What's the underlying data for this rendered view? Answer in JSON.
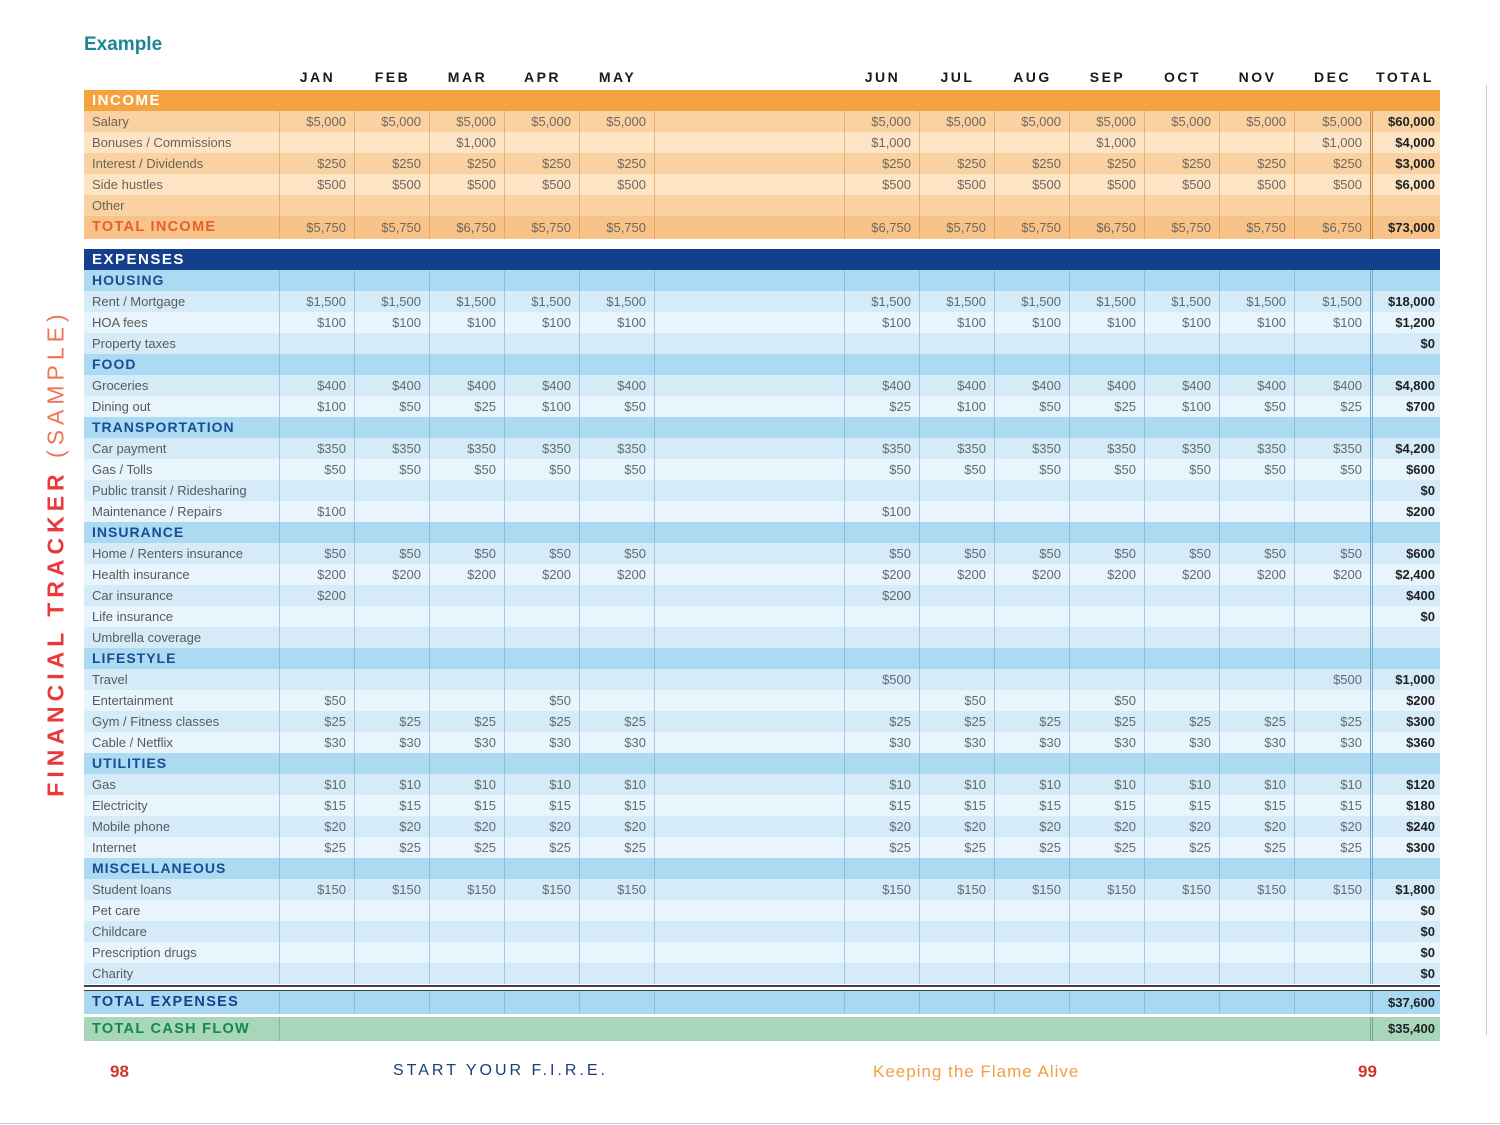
{
  "page": {
    "example_label": "Example",
    "vertical_title": {
      "main": "FINANCIAL TRACKER",
      "sample": " (SAMPLE)"
    },
    "footer": {
      "page_left": "98",
      "book_title": "START YOUR F.I.R.E.",
      "chapter_title": "Keeping the Flame Alive",
      "page_right": "99"
    }
  },
  "months": [
    "JAN",
    "FEB",
    "MAR",
    "APR",
    "MAY",
    "JUN",
    "JUL",
    "AUG",
    "SEP",
    "OCT",
    "NOV",
    "DEC"
  ],
  "total_header": "TOTAL",
  "income": {
    "header": "INCOME",
    "rows": [
      {
        "label": "Salary",
        "values": [
          "$5,000",
          "$5,000",
          "$5,000",
          "$5,000",
          "$5,000",
          "$5,000",
          "$5,000",
          "$5,000",
          "$5,000",
          "$5,000",
          "$5,000",
          "$5,000"
        ],
        "total": "$60,000"
      },
      {
        "label": "Bonuses / Commissions",
        "values": [
          "",
          "",
          "$1,000",
          "",
          "",
          "$1,000",
          "",
          "",
          "$1,000",
          "",
          "",
          "$1,000"
        ],
        "total": "$4,000"
      },
      {
        "label": "Interest / Dividends",
        "values": [
          "$250",
          "$250",
          "$250",
          "$250",
          "$250",
          "$250",
          "$250",
          "$250",
          "$250",
          "$250",
          "$250",
          "$250"
        ],
        "total": "$3,000"
      },
      {
        "label": "Side hustles",
        "values": [
          "$500",
          "$500",
          "$500",
          "$500",
          "$500",
          "$500",
          "$500",
          "$500",
          "$500",
          "$500",
          "$500",
          "$500"
        ],
        "total": "$6,000"
      },
      {
        "label": "Other",
        "values": [
          "",
          "",
          "",
          "",
          "",
          "",
          "",
          "",
          "",
          "",
          "",
          ""
        ],
        "total": ""
      }
    ],
    "total_row": {
      "label": "TOTAL INCOME",
      "values": [
        "$5,750",
        "$5,750",
        "$6,750",
        "$5,750",
        "$5,750",
        "$6,750",
        "$5,750",
        "$5,750",
        "$6,750",
        "$5,750",
        "$5,750",
        "$6,750"
      ],
      "total": "$73,000"
    }
  },
  "expenses": {
    "header": "EXPENSES",
    "sections": [
      {
        "title": "HOUSING",
        "rows": [
          {
            "label": "Rent / Mortgage",
            "values": [
              "$1,500",
              "$1,500",
              "$1,500",
              "$1,500",
              "$1,500",
              "$1,500",
              "$1,500",
              "$1,500",
              "$1,500",
              "$1,500",
              "$1,500",
              "$1,500"
            ],
            "total": "$18,000"
          },
          {
            "label": "HOA fees",
            "values": [
              "$100",
              "$100",
              "$100",
              "$100",
              "$100",
              "$100",
              "$100",
              "$100",
              "$100",
              "$100",
              "$100",
              "$100"
            ],
            "total": "$1,200"
          },
          {
            "label": "Property taxes",
            "values": [
              "",
              "",
              "",
              "",
              "",
              "",
              "",
              "",
              "",
              "",
              "",
              ""
            ],
            "total": "$0"
          }
        ]
      },
      {
        "title": "FOOD",
        "rows": [
          {
            "label": "Groceries",
            "values": [
              "$400",
              "$400",
              "$400",
              "$400",
              "$400",
              "$400",
              "$400",
              "$400",
              "$400",
              "$400",
              "$400",
              "$400"
            ],
            "total": "$4,800"
          },
          {
            "label": "Dining out",
            "values": [
              "$100",
              "$50",
              "$25",
              "$100",
              "$50",
              "$25",
              "$100",
              "$50",
              "$25",
              "$100",
              "$50",
              "$25"
            ],
            "total": "$700"
          }
        ]
      },
      {
        "title": "TRANSPORTATION",
        "rows": [
          {
            "label": "Car payment",
            "values": [
              "$350",
              "$350",
              "$350",
              "$350",
              "$350",
              "$350",
              "$350",
              "$350",
              "$350",
              "$350",
              "$350",
              "$350"
            ],
            "total": "$4,200"
          },
          {
            "label": "Gas / Tolls",
            "values": [
              "$50",
              "$50",
              "$50",
              "$50",
              "$50",
              "$50",
              "$50",
              "$50",
              "$50",
              "$50",
              "$50",
              "$50"
            ],
            "total": "$600"
          },
          {
            "label": "Public transit / Ridesharing",
            "values": [
              "",
              "",
              "",
              "",
              "",
              "",
              "",
              "",
              "",
              "",
              "",
              ""
            ],
            "total": "$0"
          },
          {
            "label": "Maintenance / Repairs",
            "values": [
              "$100",
              "",
              "",
              "",
              "",
              "$100",
              "",
              "",
              "",
              "",
              "",
              ""
            ],
            "total": "$200"
          }
        ]
      },
      {
        "title": "INSURANCE",
        "rows": [
          {
            "label": "Home / Renters insurance",
            "values": [
              "$50",
              "$50",
              "$50",
              "$50",
              "$50",
              "$50",
              "$50",
              "$50",
              "$50",
              "$50",
              "$50",
              "$50"
            ],
            "total": "$600"
          },
          {
            "label": "Health insurance",
            "values": [
              "$200",
              "$200",
              "$200",
              "$200",
              "$200",
              "$200",
              "$200",
              "$200",
              "$200",
              "$200",
              "$200",
              "$200"
            ],
            "total": "$2,400"
          },
          {
            "label": "Car insurance",
            "values": [
              "$200",
              "",
              "",
              "",
              "",
              "$200",
              "",
              "",
              "",
              "",
              "",
              ""
            ],
            "total": "$400"
          },
          {
            "label": "Life insurance",
            "values": [
              "",
              "",
              "",
              "",
              "",
              "",
              "",
              "",
              "",
              "",
              "",
              ""
            ],
            "total": "$0"
          },
          {
            "label": "Umbrella coverage",
            "values": [
              "",
              "",
              "",
              "",
              "",
              "",
              "",
              "",
              "",
              "",
              "",
              ""
            ],
            "total": ""
          }
        ]
      },
      {
        "title": "LIFESTYLE",
        "rows": [
          {
            "label": "Travel",
            "values": [
              "",
              "",
              "",
              "",
              "",
              "$500",
              "",
              "",
              "",
              "",
              "",
              "$500"
            ],
            "total": "$1,000"
          },
          {
            "label": "Entertainment",
            "values": [
              "$50",
              "",
              "",
              "$50",
              "",
              "",
              "$50",
              "",
              "$50",
              "",
              "",
              ""
            ],
            "total": "$200"
          },
          {
            "label": "Gym / Fitness classes",
            "values": [
              "$25",
              "$25",
              "$25",
              "$25",
              "$25",
              "$25",
              "$25",
              "$25",
              "$25",
              "$25",
              "$25",
              "$25"
            ],
            "total": "$300"
          },
          {
            "label": "Cable / Netflix",
            "values": [
              "$30",
              "$30",
              "$30",
              "$30",
              "$30",
              "$30",
              "$30",
              "$30",
              "$30",
              "$30",
              "$30",
              "$30"
            ],
            "total": "$360"
          }
        ]
      },
      {
        "title": "UTILITIES",
        "rows": [
          {
            "label": "Gas",
            "values": [
              "$10",
              "$10",
              "$10",
              "$10",
              "$10",
              "$10",
              "$10",
              "$10",
              "$10",
              "$10",
              "$10",
              "$10"
            ],
            "total": "$120"
          },
          {
            "label": "Electricity",
            "values": [
              "$15",
              "$15",
              "$15",
              "$15",
              "$15",
              "$15",
              "$15",
              "$15",
              "$15",
              "$15",
              "$15",
              "$15"
            ],
            "total": "$180"
          },
          {
            "label": "Mobile phone",
            "values": [
              "$20",
              "$20",
              "$20",
              "$20",
              "$20",
              "$20",
              "$20",
              "$20",
              "$20",
              "$20",
              "$20",
              "$20"
            ],
            "total": "$240"
          },
          {
            "label": "Internet",
            "values": [
              "$25",
              "$25",
              "$25",
              "$25",
              "$25",
              "$25",
              "$25",
              "$25",
              "$25",
              "$25",
              "$25",
              "$25"
            ],
            "total": "$300"
          }
        ]
      },
      {
        "title": "MISCELLANEOUS",
        "rows": [
          {
            "label": "Student loans",
            "values": [
              "$150",
              "$150",
              "$150",
              "$150",
              "$150",
              "$150",
              "$150",
              "$150",
              "$150",
              "$150",
              "$150",
              "$150"
            ],
            "total": "$1,800"
          },
          {
            "label": "Pet care",
            "values": [
              "",
              "",
              "",
              "",
              "",
              "",
              "",
              "",
              "",
              "",
              "",
              ""
            ],
            "total": "$0"
          },
          {
            "label": "Childcare",
            "values": [
              "",
              "",
              "",
              "",
              "",
              "",
              "",
              "",
              "",
              "",
              "",
              ""
            ],
            "total": "$0"
          },
          {
            "label": "Prescription drugs",
            "values": [
              "",
              "",
              "",
              "",
              "",
              "",
              "",
              "",
              "",
              "",
              "",
              ""
            ],
            "total": "$0"
          },
          {
            "label": "Charity",
            "values": [
              "",
              "",
              "",
              "",
              "",
              "",
              "",
              "",
              "",
              "",
              "",
              ""
            ],
            "total": "$0"
          }
        ]
      }
    ],
    "total_expenses_row": {
      "label": "TOTAL EXPENSES",
      "total": "$37,600"
    },
    "total_cash_flow_row": {
      "label": "TOTAL CASH FLOW",
      "total": "$35,400"
    }
  },
  "colors": {
    "income_bar": "#F5A340",
    "income_total_text": "#E7602B",
    "expenses_bar": "#143F8C",
    "section_header_text": "#1A4C93",
    "cash_flow_bg": "#A8D6BA",
    "cash_flow_text": "#128A47",
    "example_text": "#1E8596",
    "vertical_title_text": "#E83A3C",
    "page_number_text": "#D2342C",
    "chapter_title_text": "#EFA042"
  }
}
